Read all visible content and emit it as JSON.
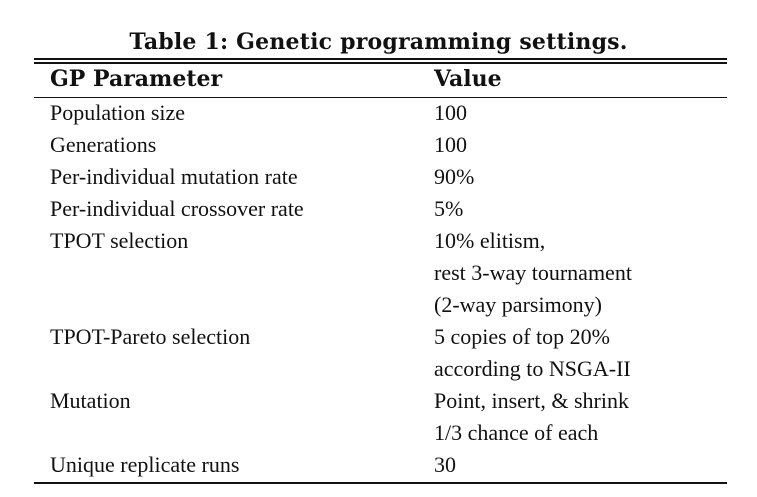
{
  "caption": "Table 1: Genetic programming settings.",
  "headers": {
    "param": "GP Parameter",
    "value": "Value"
  },
  "rows": [
    {
      "param": "Population size",
      "value": [
        "100"
      ]
    },
    {
      "param": "Generations",
      "value": [
        "100"
      ]
    },
    {
      "param": "Per-individual mutation rate",
      "value": [
        "90%"
      ]
    },
    {
      "param": "Per-individual crossover rate",
      "value": [
        "5%"
      ]
    },
    {
      "param": "TPOT selection",
      "value": [
        "10% elitism,",
        "rest 3-way tournament",
        "(2-way parsimony)"
      ]
    },
    {
      "param": "TPOT-Pareto selection",
      "value": [
        "5 copies of top 20%",
        "according to NSGA-II"
      ]
    },
    {
      "param": "Mutation",
      "value": [
        "Point, insert, & shrink",
        "1/3 chance of each"
      ]
    },
    {
      "param": "Unique replicate runs",
      "value": [
        "30"
      ]
    }
  ]
}
